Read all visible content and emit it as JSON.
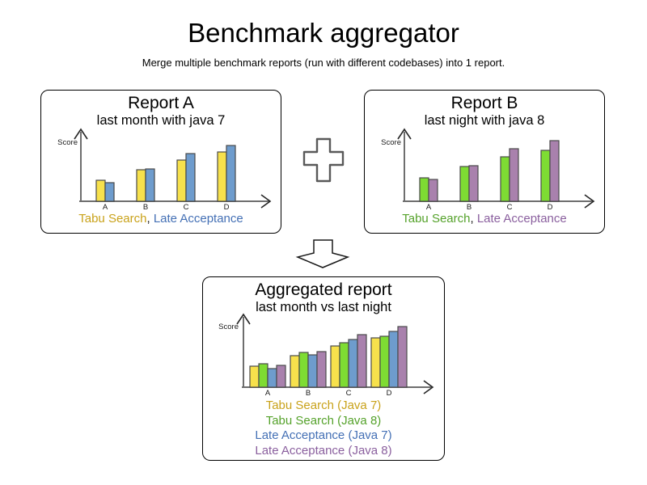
{
  "page": {
    "title": "Benchmark aggregator",
    "subtitle": "Merge multiple benchmark reports (run with different codebases) into 1 report."
  },
  "colors": {
    "bar_tabu_java7": "#F7E14C",
    "bar_late_java7": "#6E9CCD",
    "bar_tabu_java8": "#7EDC33",
    "bar_late_java8": "#A981AD",
    "bar_outline": "#4A4A4A",
    "axis_line": "#6E6E6E",
    "axis_arrow": "#262626",
    "category_text": "#1a1a1a",
    "panel_border": "#000000",
    "text_tabu_java7": "#C9A21A",
    "text_late_java7": "#4470B5",
    "text_tabu_java8": "#55A22B",
    "text_late_java8": "#8A5F9E"
  },
  "legends": {
    "separator": ",",
    "report_a": [
      "Tabu Search",
      "Late Acceptance"
    ],
    "report_b": [
      "Tabu Search",
      "Late Acceptance"
    ],
    "aggregated": [
      "Tabu Search (Java 7)",
      "Tabu Search (Java 8)",
      "Late Acceptance (Java 7)",
      "Late Acceptance (Java 8)"
    ]
  },
  "icons": {
    "plus": "plus-icon",
    "down_arrow": "down-arrow-icon"
  },
  "chart_data": [
    {
      "id": "report-a",
      "type": "bar",
      "title": "Report A",
      "subtitle": "last month with java 7",
      "ylabel": "Score",
      "xlabel": "",
      "categories": [
        "A",
        "B",
        "C",
        "D"
      ],
      "series": [
        {
          "name": "Tabu Search",
          "color": "#F7E14C",
          "values": [
            26,
            39,
            51,
            61
          ]
        },
        {
          "name": "Late Acceptance",
          "color": "#6E9CCD",
          "values": [
            23,
            40,
            59,
            69
          ]
        }
      ],
      "ylim": [
        0,
        90
      ],
      "units": "relative score (numeric axis not labeled, values estimated)",
      "grid": false,
      "legend_position": "below"
    },
    {
      "id": "report-b",
      "type": "bar",
      "title": "Report B",
      "subtitle": "last night with java 8",
      "ylabel": "Score",
      "xlabel": "",
      "categories": [
        "A",
        "B",
        "C",
        "D"
      ],
      "series": [
        {
          "name": "Tabu Search",
          "color": "#7EDC33",
          "values": [
            29,
            43,
            55,
            63
          ]
        },
        {
          "name": "Late Acceptance",
          "color": "#A981AD",
          "values": [
            27,
            44,
            65,
            75
          ]
        }
      ],
      "ylim": [
        0,
        90
      ],
      "units": "relative score (numeric axis not labeled, values estimated)",
      "grid": false,
      "legend_position": "below"
    },
    {
      "id": "aggregated",
      "type": "bar",
      "title": "Aggregated report",
      "subtitle": "last month vs last night",
      "ylabel": "Score",
      "xlabel": "",
      "categories": [
        "A",
        "B",
        "C",
        "D"
      ],
      "series": [
        {
          "name": "Tabu Search (Java 7)",
          "color": "#F7E14C",
          "values": [
            26,
            39,
            51,
            61
          ]
        },
        {
          "name": "Tabu Search (Java 8)",
          "color": "#7EDC33",
          "values": [
            29,
            43,
            55,
            63
          ]
        },
        {
          "name": "Late Acceptance (Java 7)",
          "color": "#6E9CCD",
          "values": [
            23,
            40,
            59,
            69
          ]
        },
        {
          "name": "Late Acceptance (Java 8)",
          "color": "#A981AD",
          "values": [
            27,
            44,
            65,
            75
          ]
        }
      ],
      "ylim": [
        0,
        90
      ],
      "units": "relative score (numeric axis not labeled, values estimated)",
      "grid": false,
      "legend_position": "below"
    }
  ]
}
